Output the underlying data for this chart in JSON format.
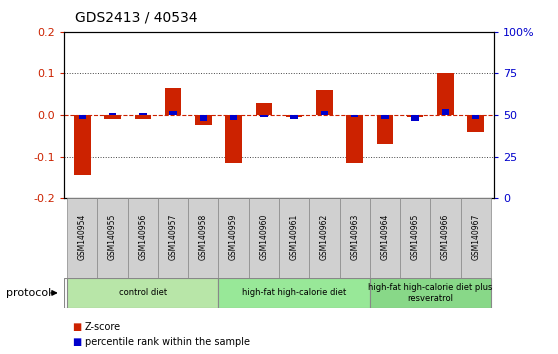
{
  "title": "GDS2413 / 40534",
  "samples": [
    "GSM140954",
    "GSM140955",
    "GSM140956",
    "GSM140957",
    "GSM140958",
    "GSM140959",
    "GSM140960",
    "GSM140961",
    "GSM140962",
    "GSM140963",
    "GSM140964",
    "GSM140965",
    "GSM140966",
    "GSM140967"
  ],
  "z_scores": [
    -0.145,
    -0.01,
    -0.01,
    0.065,
    -0.025,
    -0.115,
    0.03,
    -0.005,
    0.06,
    -0.115,
    -0.07,
    -0.005,
    0.102,
    -0.04
  ],
  "pct_ranks": [
    -0.01,
    0.005,
    0.005,
    0.01,
    -0.015,
    -0.012,
    -0.005,
    -0.01,
    0.01,
    -0.005,
    -0.01,
    -0.015,
    0.015,
    -0.01
  ],
  "groups": [
    {
      "label": "control diet",
      "start": 0,
      "end": 4,
      "color": "#b8e6a8"
    },
    {
      "label": "high-fat high-calorie diet",
      "start": 5,
      "end": 9,
      "color": "#98e898"
    },
    {
      "label": "high-fat high-calorie diet plus\nresveratrol",
      "start": 10,
      "end": 13,
      "color": "#88d888"
    }
  ],
  "ylim": [
    -0.2,
    0.2
  ],
  "yticks_left": [
    -0.2,
    -0.1,
    0.0,
    0.1,
    0.2
  ],
  "yticks_right_labels": [
    "0",
    "25",
    "50",
    "75",
    "100%"
  ],
  "yticks_right_vals": [
    0,
    25,
    50,
    75,
    100
  ],
  "z_color": "#cc2200",
  "pct_color": "#0000cc",
  "bar_width": 0.55,
  "pct_bar_width": 0.25,
  "dashed_line_color": "#cc2200",
  "dotted_line_color": "#444444",
  "tick_area_color": "#d0d0d0",
  "group_border_color": "#888888"
}
